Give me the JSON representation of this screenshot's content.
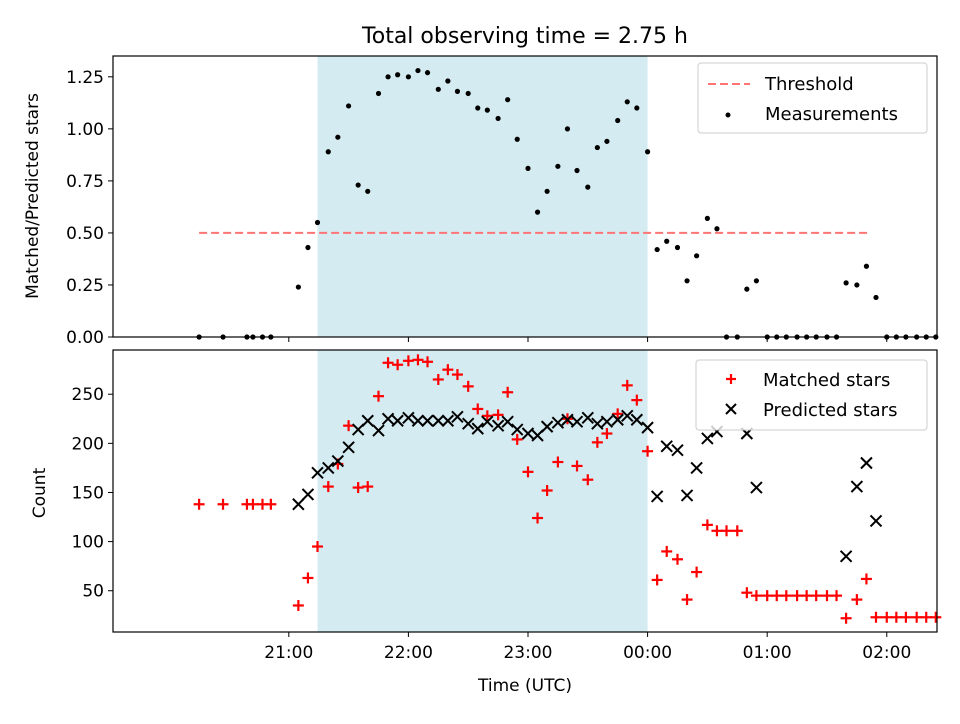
{
  "chart_data": [
    {
      "type": "scatter",
      "title": "Total observing time = 2.75 h",
      "ylabel": "Matched/Predicted stars",
      "xlabel": "",
      "ylim": [
        0,
        1.35
      ],
      "yticks": [
        0.0,
        0.25,
        0.5,
        0.75,
        1.0,
        1.25
      ],
      "ytick_labels": [
        "0.00",
        "0.25",
        "0.50",
        "0.75",
        "1.00",
        "1.25"
      ],
      "xlim": [
        -0.47,
        6.42
      ],
      "shaded_interval": [
        1.24,
        4.0
      ],
      "shaded_color": "#d4ebf1",
      "legend_position": "top-right",
      "threshold": {
        "name": "Threshold",
        "value": 0.5,
        "x_range": [
          0.25,
          5.85
        ],
        "color": "#ff7474"
      },
      "measurements": {
        "name": "Measurements",
        "color": "#000000",
        "points": [
          [
            0.25,
            0.0
          ],
          [
            0.45,
            0.0
          ],
          [
            0.65,
            0.0
          ],
          [
            0.7,
            0.0
          ],
          [
            0.78,
            0.0
          ],
          [
            0.85,
            0.0
          ],
          [
            1.08,
            0.24
          ],
          [
            1.16,
            0.43
          ],
          [
            1.24,
            0.55
          ],
          [
            1.33,
            0.89
          ],
          [
            1.41,
            0.96
          ],
          [
            1.5,
            1.11
          ],
          [
            1.58,
            0.73
          ],
          [
            1.66,
            0.7
          ],
          [
            1.75,
            1.17
          ],
          [
            1.83,
            1.25
          ],
          [
            1.91,
            1.26
          ],
          [
            2.0,
            1.25
          ],
          [
            2.08,
            1.28
          ],
          [
            2.16,
            1.27
          ],
          [
            2.25,
            1.19
          ],
          [
            2.33,
            1.23
          ],
          [
            2.41,
            1.18
          ],
          [
            2.5,
            1.17
          ],
          [
            2.58,
            1.1
          ],
          [
            2.66,
            1.09
          ],
          [
            2.75,
            1.05
          ],
          [
            2.83,
            1.14
          ],
          [
            2.91,
            0.95
          ],
          [
            3.0,
            0.81
          ],
          [
            3.08,
            0.6
          ],
          [
            3.16,
            0.7
          ],
          [
            3.25,
            0.82
          ],
          [
            3.33,
            1.0
          ],
          [
            3.41,
            0.8
          ],
          [
            3.5,
            0.72
          ],
          [
            3.58,
            0.91
          ],
          [
            3.66,
            0.94
          ],
          [
            3.75,
            1.04
          ],
          [
            3.83,
            1.13
          ],
          [
            3.91,
            1.1
          ],
          [
            4.0,
            0.89
          ],
          [
            4.08,
            0.42
          ],
          [
            4.16,
            0.46
          ],
          [
            4.25,
            0.43
          ],
          [
            4.33,
            0.27
          ],
          [
            4.41,
            0.39
          ],
          [
            4.5,
            0.57
          ],
          [
            4.58,
            0.52
          ],
          [
            4.66,
            0.0
          ],
          [
            4.75,
            0.0
          ],
          [
            4.83,
            0.23
          ],
          [
            4.91,
            0.27
          ],
          [
            5.0,
            0.0
          ],
          [
            5.08,
            0.0
          ],
          [
            5.16,
            0.0
          ],
          [
            5.25,
            0.0
          ],
          [
            5.33,
            0.0
          ],
          [
            5.41,
            0.0
          ],
          [
            5.5,
            0.0
          ],
          [
            5.58,
            0.0
          ],
          [
            5.66,
            0.26
          ],
          [
            5.75,
            0.25
          ],
          [
            5.83,
            0.34
          ],
          [
            5.91,
            0.19
          ],
          [
            6.0,
            0.0
          ],
          [
            6.08,
            0.0
          ],
          [
            6.16,
            0.0
          ],
          [
            6.25,
            0.0
          ],
          [
            6.33,
            0.0
          ],
          [
            6.41,
            0.0
          ]
        ]
      }
    },
    {
      "type": "scatter",
      "title": "",
      "ylabel": "Count",
      "xlabel": "Time (UTC)",
      "ylim": [
        8,
        295
      ],
      "yticks": [
        50,
        100,
        150,
        200,
        250
      ],
      "ytick_labels": [
        "50",
        "100",
        "150",
        "200",
        "250"
      ],
      "xlim": [
        -0.47,
        6.42
      ],
      "xticks": [
        1,
        2,
        3,
        4,
        5,
        6
      ],
      "xtick_labels": [
        "21:00",
        "22:00",
        "23:00",
        "00:00",
        "01:00",
        "02:00"
      ],
      "shaded_interval": [
        1.24,
        4.0
      ],
      "shaded_color": "#d4ebf1",
      "legend_position": "top-right",
      "matched": {
        "name": "Matched stars",
        "color": "#ff0000",
        "points": [
          [
            0.25,
            138
          ],
          [
            0.45,
            138
          ],
          [
            0.65,
            138
          ],
          [
            0.7,
            138
          ],
          [
            0.78,
            138
          ],
          [
            0.85,
            138
          ],
          [
            1.08,
            35
          ],
          [
            1.16,
            63
          ],
          [
            1.24,
            95
          ],
          [
            1.33,
            156
          ],
          [
            1.41,
            179
          ],
          [
            1.5,
            218
          ],
          [
            1.58,
            155
          ],
          [
            1.66,
            156
          ],
          [
            1.75,
            248
          ],
          [
            1.83,
            282
          ],
          [
            1.91,
            280
          ],
          [
            2.0,
            284
          ],
          [
            2.08,
            285
          ],
          [
            2.16,
            283
          ],
          [
            2.25,
            265
          ],
          [
            2.33,
            275
          ],
          [
            2.41,
            270
          ],
          [
            2.5,
            258
          ],
          [
            2.58,
            235
          ],
          [
            2.66,
            228
          ],
          [
            2.75,
            229
          ],
          [
            2.83,
            252
          ],
          [
            2.91,
            204
          ],
          [
            3.0,
            171
          ],
          [
            3.08,
            124
          ],
          [
            3.16,
            152
          ],
          [
            3.25,
            181
          ],
          [
            3.33,
            225
          ],
          [
            3.41,
            177
          ],
          [
            3.5,
            163
          ],
          [
            3.58,
            201
          ],
          [
            3.66,
            210
          ],
          [
            3.75,
            230
          ],
          [
            3.83,
            259
          ],
          [
            3.91,
            244
          ],
          [
            4.0,
            192
          ],
          [
            4.08,
            61
          ],
          [
            4.16,
            90
          ],
          [
            4.25,
            82
          ],
          [
            4.33,
            41
          ],
          [
            4.41,
            69
          ],
          [
            4.5,
            117
          ],
          [
            4.58,
            111
          ],
          [
            4.66,
            111
          ],
          [
            4.75,
            111
          ],
          [
            4.83,
            48
          ],
          [
            4.91,
            45
          ],
          [
            5.0,
            45
          ],
          [
            5.08,
            45
          ],
          [
            5.16,
            45
          ],
          [
            5.25,
            45
          ],
          [
            5.33,
            45
          ],
          [
            5.41,
            45
          ],
          [
            5.5,
            45
          ],
          [
            5.58,
            45
          ],
          [
            5.66,
            22
          ],
          [
            5.75,
            41
          ],
          [
            5.83,
            62
          ],
          [
            5.91,
            23
          ],
          [
            6.0,
            23
          ],
          [
            6.08,
            23
          ],
          [
            6.16,
            23
          ],
          [
            6.25,
            23
          ],
          [
            6.33,
            23
          ],
          [
            6.41,
            23
          ]
        ]
      },
      "predicted": {
        "name": "Predicted stars",
        "color": "#000000",
        "points": [
          [
            1.08,
            138
          ],
          [
            1.16,
            148
          ],
          [
            1.24,
            170
          ],
          [
            1.33,
            175
          ],
          [
            1.41,
            182
          ],
          [
            1.5,
            196
          ],
          [
            1.58,
            214
          ],
          [
            1.66,
            223
          ],
          [
            1.75,
            213
          ],
          [
            1.83,
            225
          ],
          [
            1.91,
            223
          ],
          [
            2.0,
            226
          ],
          [
            2.08,
            223
          ],
          [
            2.16,
            223
          ],
          [
            2.25,
            223
          ],
          [
            2.33,
            223
          ],
          [
            2.41,
            227
          ],
          [
            2.5,
            220
          ],
          [
            2.58,
            215
          ],
          [
            2.66,
            222
          ],
          [
            2.75,
            218
          ],
          [
            2.83,
            222
          ],
          [
            2.91,
            214
          ],
          [
            3.0,
            210
          ],
          [
            3.08,
            208
          ],
          [
            3.16,
            217
          ],
          [
            3.25,
            221
          ],
          [
            3.33,
            224
          ],
          [
            3.41,
            222
          ],
          [
            3.5,
            226
          ],
          [
            3.58,
            220
          ],
          [
            3.66,
            222
          ],
          [
            3.75,
            224
          ],
          [
            3.83,
            228
          ],
          [
            3.91,
            224
          ],
          [
            4.0,
            216
          ],
          [
            4.08,
            146
          ],
          [
            4.16,
            197
          ],
          [
            4.25,
            193
          ],
          [
            4.33,
            147
          ],
          [
            4.41,
            175
          ],
          [
            4.5,
            205
          ],
          [
            4.58,
            212
          ],
          [
            4.83,
            210
          ],
          [
            4.91,
            155
          ],
          [
            5.66,
            85
          ],
          [
            5.75,
            156
          ],
          [
            5.83,
            180
          ],
          [
            5.91,
            121
          ]
        ]
      }
    }
  ]
}
